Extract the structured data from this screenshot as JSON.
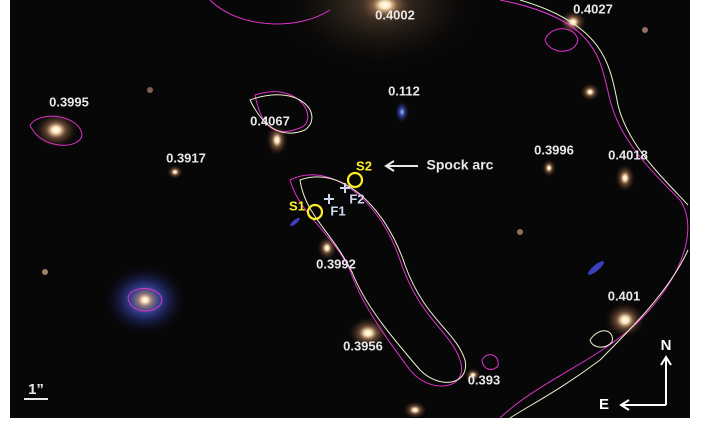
{
  "redshift_labels": [
    "0.4002",
    "0.4027",
    "0.3995",
    "0.112",
    "0.4067",
    "0.3917",
    "0.3996",
    "0.4018",
    "0.3992",
    "0.401",
    "0.3956",
    "0.393"
  ],
  "images": {
    "s1": "S1",
    "s2": "S2"
  },
  "features": {
    "f1": "F1",
    "f2": "F2"
  },
  "annotation": "Spock arc",
  "scale_bar": "1”",
  "compass": {
    "north": "N",
    "east": "E"
  }
}
